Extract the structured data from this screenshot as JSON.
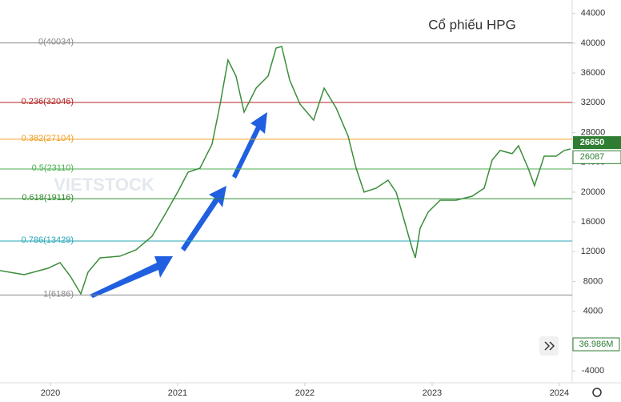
{
  "chart_data": {
    "type": "line",
    "title": "Cổ phiếu HPG",
    "watermark": "VIETSTOCK",
    "color": "#3b8d3b",
    "x": [
      2019.604,
      2019.793,
      2019.981,
      2020.076,
      2020.157,
      2020.239,
      2020.296,
      2020.39,
      2020.547,
      2020.673,
      2020.799,
      2020.893,
      2021.0,
      2021.082,
      2021.176,
      2021.271,
      2021.334,
      2021.396,
      2021.459,
      2021.522,
      2021.617,
      2021.711,
      2021.774,
      2021.818,
      2021.881,
      2021.962,
      2022.069,
      2022.151,
      2022.246,
      2022.34,
      2022.403,
      2022.466,
      2022.56,
      2022.654,
      2022.717,
      2022.78,
      2022.843,
      2022.868,
      2022.906,
      2022.969,
      2023.063,
      2023.189,
      2023.315,
      2023.409,
      2023.472,
      2023.535,
      2023.629,
      2023.679,
      2023.755,
      2023.805,
      2023.881,
      2023.975,
      2024.038,
      2024.088
    ],
    "values": [
      9460,
      8920,
      9780,
      10540,
      8710,
      6340,
      9250,
      11180,
      11400,
      12250,
      14080,
      16770,
      20000,
      22680,
      23220,
      26450,
      31820,
      37730,
      35580,
      30750,
      33970,
      35580,
      39350,
      39560,
      35050,
      31820,
      29670,
      33970,
      31280,
      27520,
      23220,
      20000,
      20530,
      21610,
      20000,
      16230,
      12470,
      11180,
      15160,
      17310,
      18920,
      18920,
      19460,
      20530,
      24300,
      25590,
      25160,
      26230,
      23220,
      20860,
      24830,
      24830,
      25590,
      25800
    ],
    "xlim": [
      2019.604,
      2024.101
    ],
    "xticks": [
      2020,
      2021,
      2022,
      2023,
      2024
    ],
    "ylim": [
      -5600,
      45800
    ],
    "yticks": [
      44000,
      40000,
      36000,
      32000,
      28000,
      24000,
      20000,
      16000,
      12000,
      8000,
      4000,
      -4000
    ],
    "fib_levels": [
      {
        "label": "0(40034)",
        "value": 40034,
        "color": "#888888"
      },
      {
        "label": "0.236(32046)",
        "value": 32046,
        "color": "#b22222"
      },
      {
        "label": "0.382(27104)",
        "value": 27104,
        "color": "#f0a020"
      },
      {
        "label": "0.5(23110)",
        "value": 23110,
        "color": "#4caf50"
      },
      {
        "label": "0.618(19116)",
        "value": 19116,
        "color": "#2e8b2e"
      },
      {
        "label": "0.786(13429)",
        "value": 13429,
        "color": "#26a6b8"
      },
      {
        "label": "1(6186)",
        "value": 6186,
        "color": "#888888"
      }
    ],
    "last_price": 26650,
    "average_price": 26087,
    "volume_label": "36.986M"
  }
}
